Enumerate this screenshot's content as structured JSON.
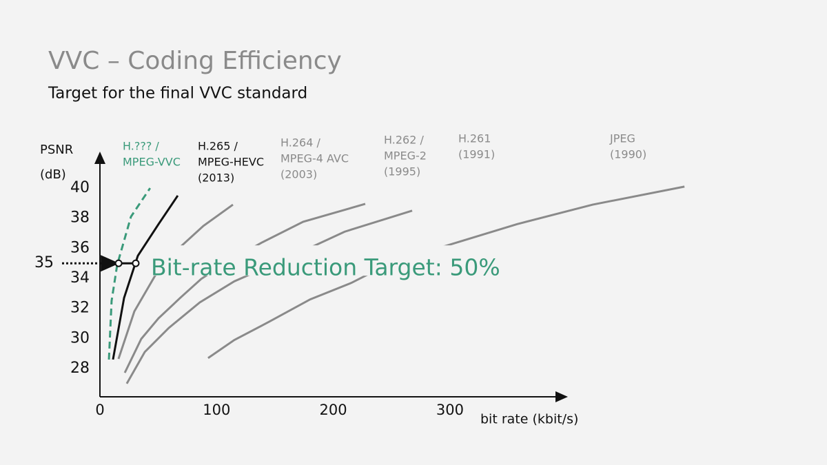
{
  "chart_data": {
    "type": "line",
    "title": "VVC – Coding Efficiency",
    "subtitle": "Target for the final VVC standard",
    "ylabel": [
      "PSNR",
      "(dB)"
    ],
    "xlabel": "bit rate (kbit/s)",
    "xlim": [
      0,
      400
    ],
    "ylim": [
      26.2,
      42.2
    ],
    "xticks": [
      0,
      100,
      200,
      300
    ],
    "yticks": [
      28,
      30,
      32,
      34,
      36,
      38,
      40
    ],
    "series": [
      {
        "name": [
          "H.??? /",
          "MPEG-VVC"
        ],
        "color": "#3a9a7a",
        "dashed": true,
        "x": [
          7.7,
          10,
          14.8,
          26.6,
          43
        ],
        "values": [
          28.6,
          32.5,
          34.9,
          38.1,
          40.0
        ]
      },
      {
        "name": [
          "H.265 /",
          "MPEG-HEVC",
          "(2013)"
        ],
        "color": "#111111",
        "x": [
          11.2,
          20.7,
          32.5,
          50.2,
          66.7
        ],
        "values": [
          28.6,
          32.7,
          35.5,
          37.6,
          39.5
        ]
      },
      {
        "name": [
          "H.264 /",
          "MPEG-4 AVC",
          "(2003)"
        ],
        "color": "#8a8a8a",
        "x": [
          15.9,
          29.5,
          47.3,
          69.1,
          88.6,
          114
        ],
        "values": [
          28.64,
          31.8,
          34.18,
          36.1,
          37.48,
          38.9
        ]
      },
      {
        "name": [
          "H.262 /",
          "MPEG-2",
          "(1995)"
        ],
        "color": "#8a8a8a",
        "x": [
          21.3,
          35.4,
          50.2,
          69.1,
          86.8,
          109.3,
          138.8,
          174.2,
          227.4
        ],
        "values": [
          27.72,
          29.97,
          31.34,
          32.72,
          33.96,
          35.1,
          36.38,
          37.76,
          38.95
        ]
      },
      {
        "name": [
          "H.261",
          "(1991)"
        ],
        "color": "#8a8a8a",
        "x": [
          23,
          38.4,
          59,
          85.6,
          115.2,
          162.4,
          209.7,
          267.6
        ],
        "values": [
          27.0,
          29.1,
          30.7,
          32.4,
          33.8,
          35.4,
          37.1,
          38.5
        ]
      },
      {
        "name": [
          "JPEG",
          "(1990)"
        ],
        "color": "#8a8a8a",
        "x": [
          92.7,
          115.2,
          144.7,
          180.2,
          215.6,
          251,
          298.3,
          357.4,
          422.3,
          501
        ],
        "values": [
          28.7,
          29.9,
          31.1,
          32.6,
          33.7,
          35.1,
          36.2,
          37.6,
          38.9,
          40.1
        ]
      }
    ],
    "target": {
      "psnr": 35,
      "x": [
        16,
        30.7
      ],
      "text": "Bit-rate Reduction Target: 50%",
      "color": "#3a9a7a"
    }
  }
}
